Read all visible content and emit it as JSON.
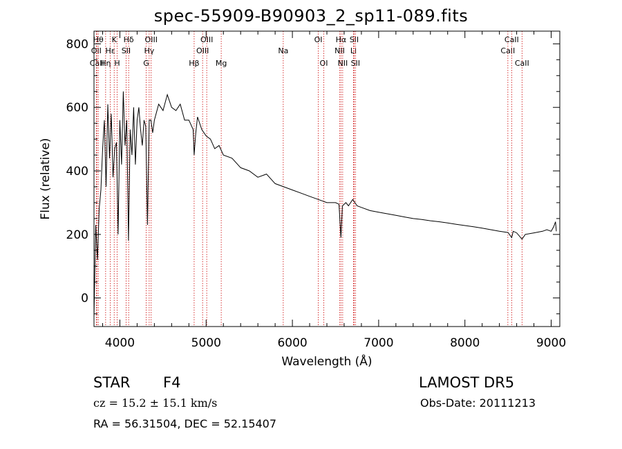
{
  "chart_data": {
    "type": "line",
    "title": "spec-55909-B90903_2_sp11-089.fits",
    "xlabel": "Wavelength (Å)",
    "ylabel": "Flux (relative)",
    "xlim": [
      3700,
      9100
    ],
    "ylim": [
      -90,
      840
    ],
    "xticks": [
      4000,
      5000,
      6000,
      7000,
      8000,
      9000
    ],
    "yticks": [
      0,
      200,
      400,
      600,
      800
    ],
    "grid": false,
    "legend": "none",
    "line_color": "#000000",
    "marker_color": "#cc0000",
    "series": [
      {
        "x": [
          3700,
          3720,
          3740,
          3760,
          3780,
          3800,
          3820,
          3840,
          3860,
          3880,
          3900,
          3920,
          3940,
          3960,
          3980,
          4000,
          4020,
          4040,
          4060,
          4080,
          4100,
          4120,
          4140,
          4160,
          4180,
          4200,
          4220,
          4240,
          4260,
          4280,
          4300,
          4320,
          4340,
          4360,
          4380,
          4400,
          4450,
          4500,
          4550,
          4600,
          4650,
          4700,
          4750,
          4800,
          4850,
          4861,
          4880,
          4900,
          4950,
          5000,
          5050,
          5100,
          5150,
          5200,
          5300,
          5400,
          5500,
          5600,
          5700,
          5800,
          5900,
          6000,
          6100,
          6200,
          6300,
          6400,
          6500,
          6540,
          6563,
          6580,
          6620,
          6650,
          6700,
          6750,
          6800,
          6900,
          7000,
          7100,
          7200,
          7300,
          7400,
          7500,
          7600,
          7700,
          7800,
          7900,
          8000,
          8100,
          8200,
          8300,
          8400,
          8500,
          8542,
          8560,
          8600,
          8662,
          8700,
          8800,
          8900,
          8950,
          9000,
          9030,
          9050,
          9060
        ],
        "y": [
          -60,
          230,
          120,
          280,
          340,
          470,
          560,
          350,
          610,
          440,
          580,
          380,
          470,
          490,
          200,
          560,
          420,
          650,
          480,
          560,
          180,
          530,
          450,
          600,
          420,
          560,
          600,
          530,
          480,
          560,
          540,
          230,
          560,
          560,
          520,
          560,
          610,
          590,
          640,
          600,
          590,
          610,
          560,
          560,
          530,
          450,
          520,
          570,
          530,
          510,
          500,
          470,
          480,
          450,
          440,
          410,
          400,
          380,
          390,
          360,
          350,
          340,
          330,
          320,
          310,
          300,
          300,
          295,
          190,
          290,
          300,
          290,
          310,
          290,
          285,
          275,
          270,
          265,
          260,
          255,
          250,
          247,
          243,
          240,
          236,
          232,
          228,
          224,
          220,
          215,
          210,
          206,
          190,
          210,
          205,
          185,
          200,
          205,
          210,
          215,
          210,
          225,
          240,
          210
        ]
      }
    ],
    "lines": [
      {
        "label": "OII",
        "x": 3727,
        "row": 2
      },
      {
        "label": "CaII",
        "x": 3734,
        "row": 3
      },
      {
        "label": "Hθ",
        "x": 3750,
        "row": 1
      },
      {
        "label": "Hη",
        "x": 3835,
        "row": 3
      },
      {
        "label": "Hε",
        "x": 3889,
        "row": 2
      },
      {
        "label": "K",
        "x": 3934,
        "row": 1
      },
      {
        "label": "H",
        "x": 3969,
        "row": 3
      },
      {
        "label": "Hδ",
        "x": 4102,
        "row": 1
      },
      {
        "label": "SII",
        "x": 4072,
        "row": 2
      },
      {
        "label": "G",
        "x": 4305,
        "row": 3
      },
      {
        "label": "Hγ",
        "x": 4340,
        "row": 2
      },
      {
        "label": "OIII",
        "x": 4363,
        "row": 1
      },
      {
        "label": "Hβ",
        "x": 4861,
        "row": 3
      },
      {
        "label": "OIII",
        "x": 4959,
        "row": 2
      },
      {
        "label": "OIII",
        "x": 5007,
        "row": 1
      },
      {
        "label": "Mg",
        "x": 5175,
        "row": 3
      },
      {
        "label": "Na",
        "x": 5894,
        "row": 2
      },
      {
        "label": "OI",
        "x": 6300,
        "row": 1
      },
      {
        "label": "OI",
        "x": 6364,
        "row": 3
      },
      {
        "label": "NII",
        "x": 6548,
        "row": 2
      },
      {
        "label": "Hα",
        "x": 6563,
        "row": 1
      },
      {
        "label": "NII",
        "x": 6583,
        "row": 3
      },
      {
        "label": "Li",
        "x": 6708,
        "row": 2
      },
      {
        "label": "SII",
        "x": 6716,
        "row": 1
      },
      {
        "label": "SII",
        "x": 6731,
        "row": 3
      },
      {
        "label": "CaII",
        "x": 8498,
        "row": 2
      },
      {
        "label": "CaII",
        "x": 8542,
        "row": 1
      },
      {
        "label": "CaII",
        "x": 8662,
        "row": 3
      }
    ]
  },
  "info": {
    "class": "STAR",
    "subclass": "F4",
    "survey": "LAMOST DR5",
    "cz": "cz = 15.2 ± 15.1 km/s",
    "obs_date": "Obs-Date: 20111213",
    "radec": "RA =  56.31504, DEC =  52.15407"
  }
}
